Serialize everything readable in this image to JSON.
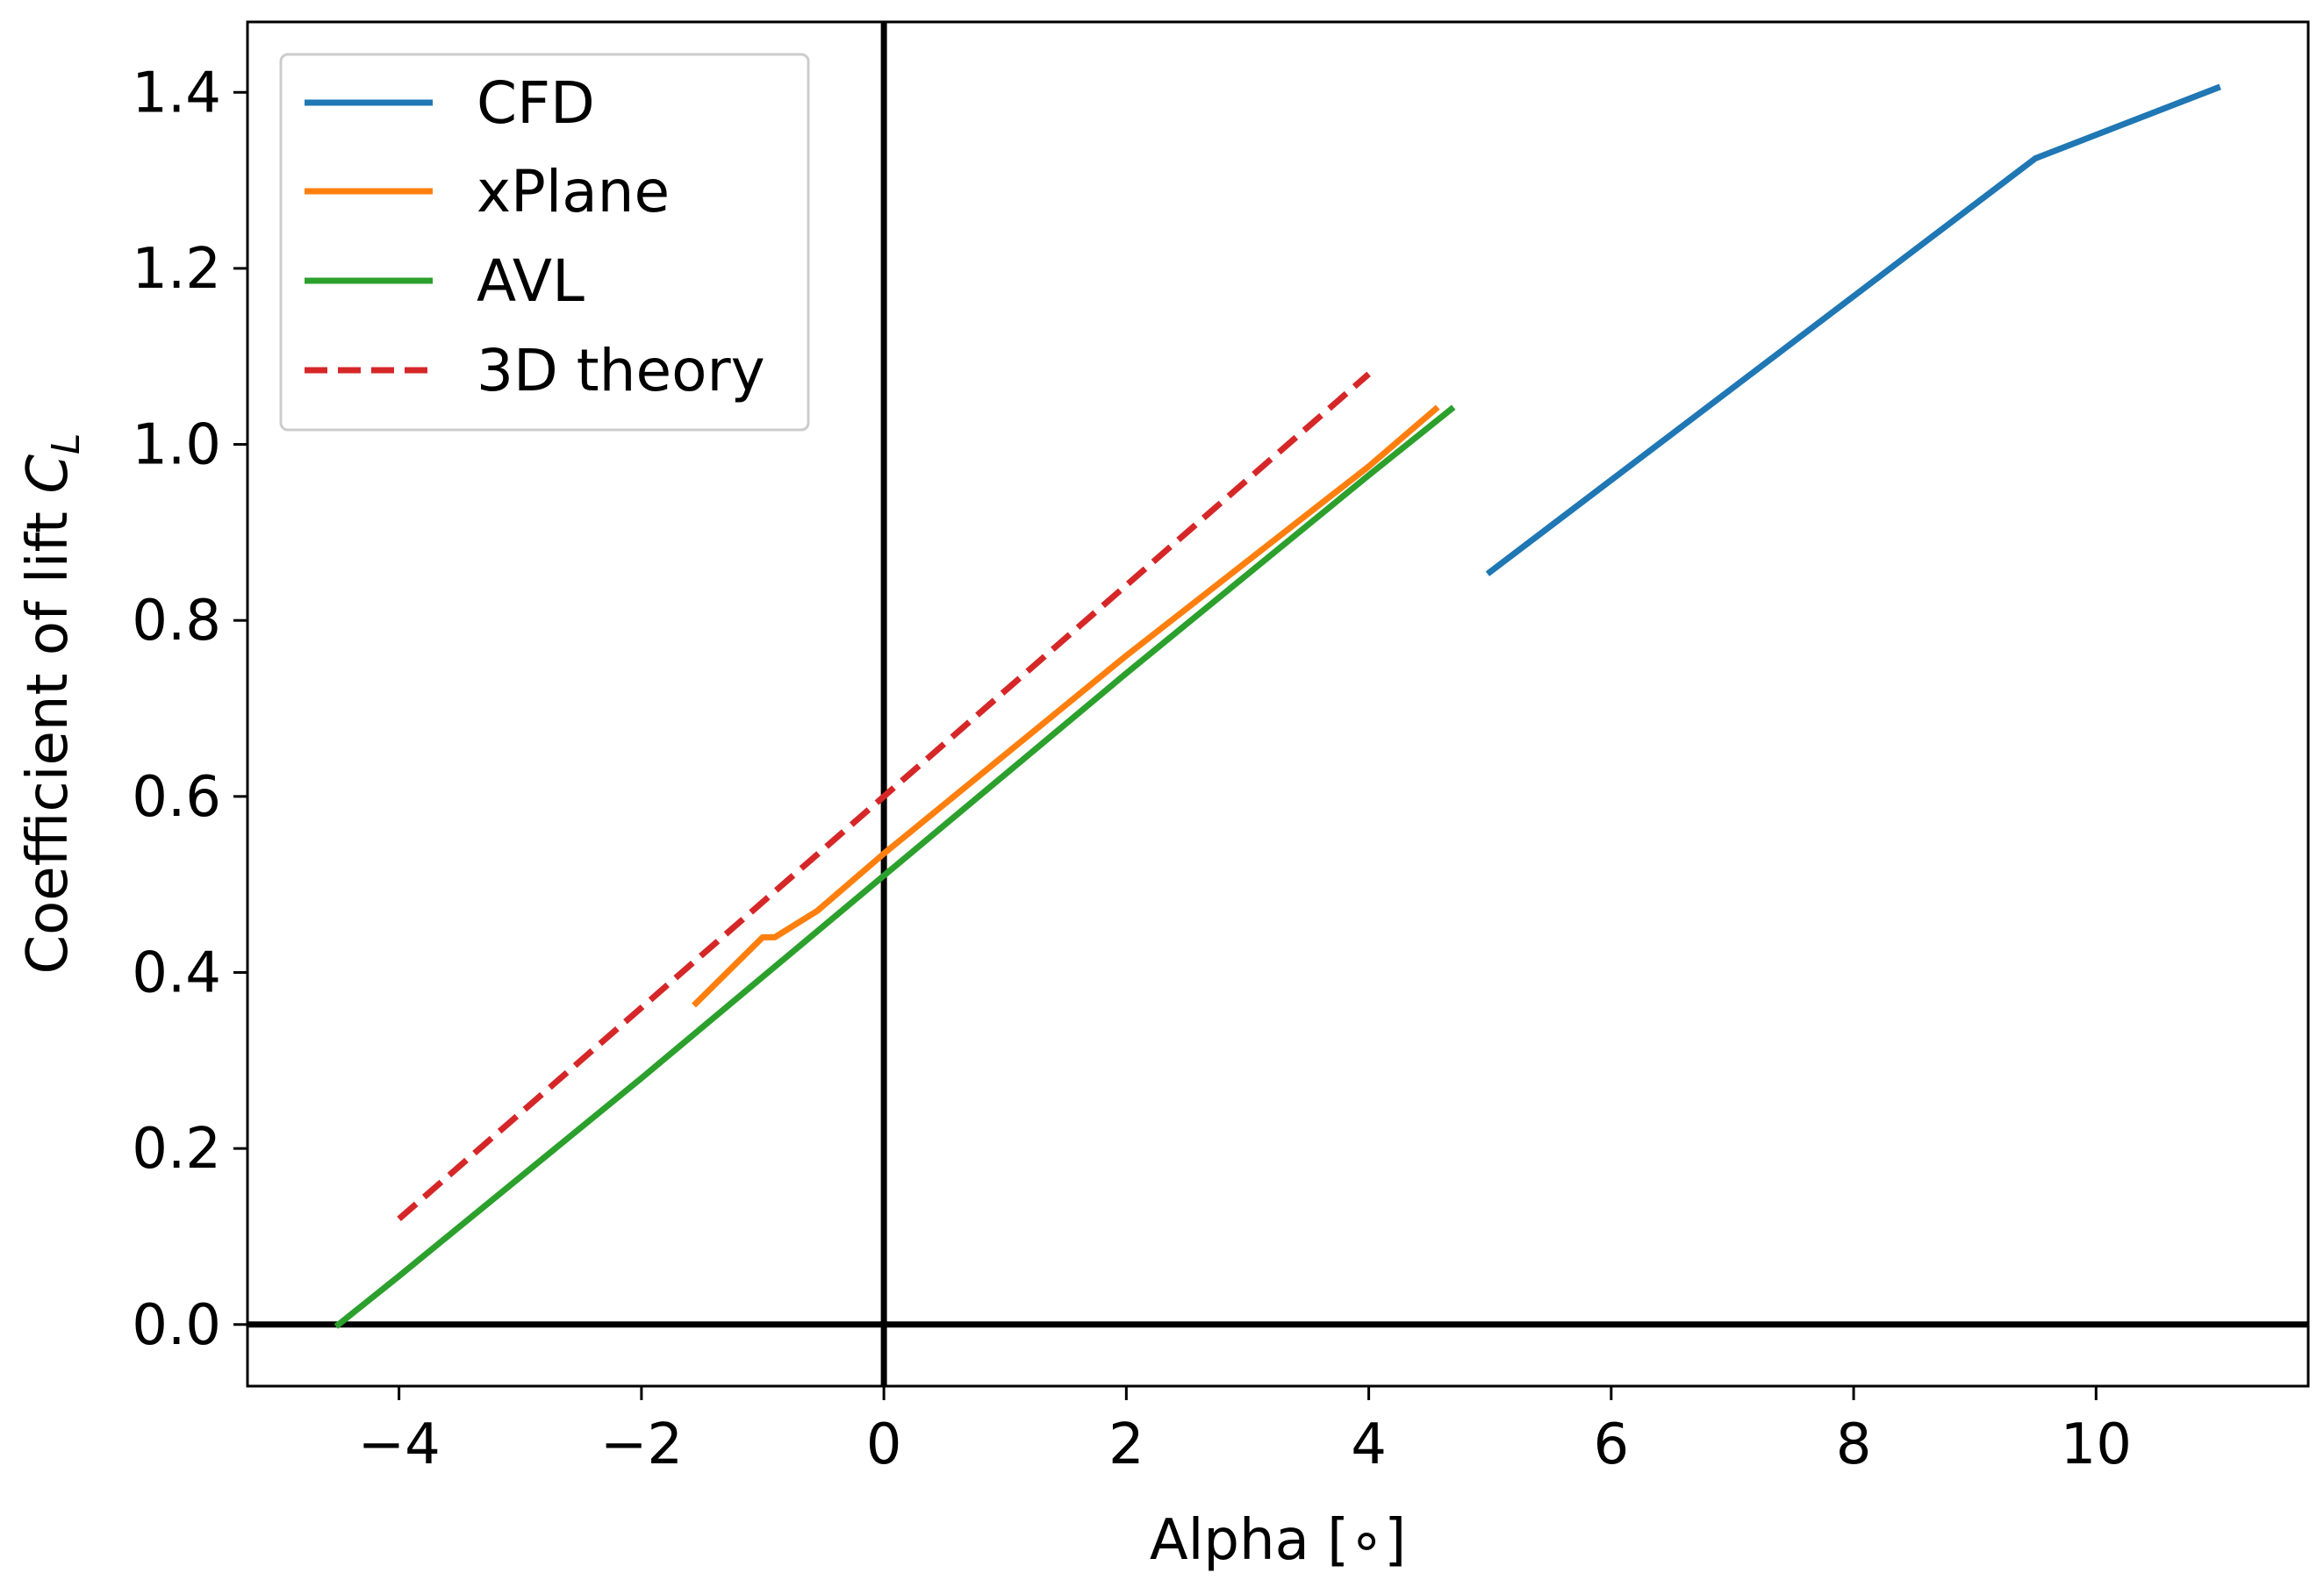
{
  "chart_data": {
    "type": "line",
    "title": "",
    "xlabel": "Alpha [∘]",
    "ylabel": "Coefficient of lift C_L",
    "ylabel_main": "Coefficient of lift ",
    "ylabel_symbol": "C",
    "ylabel_subscript": "L",
    "xlim": [
      -5.25,
      11.75
    ],
    "ylim": [
      -0.07,
      1.48
    ],
    "xticks": [
      -4,
      -2,
      0,
      2,
      4,
      6,
      8,
      10
    ],
    "xtick_labels": [
      "−4",
      "−2",
      "0",
      "2",
      "4",
      "6",
      "8",
      "10"
    ],
    "yticks": [
      0.0,
      0.2,
      0.4,
      0.6,
      0.8,
      1.0,
      1.2,
      1.4
    ],
    "ytick_labels": [
      "0.0",
      "0.2",
      "0.4",
      "0.6",
      "0.8",
      "1.0",
      "1.2",
      "1.4"
    ],
    "grid": false,
    "legend_position": "top-left",
    "reference_lines": {
      "x": 0,
      "y": 0
    },
    "series": [
      {
        "name": "CFD",
        "color": "#1f77b4",
        "style": "solid",
        "x": [
          5.0,
          9.5,
          11.0
        ],
        "y": [
          0.855,
          1.325,
          1.405
        ]
      },
      {
        "name": "xPlane",
        "color": "#ff7f0e",
        "style": "solid",
        "x": [
          -1.55,
          -1.0,
          -0.9,
          -0.55,
          0.0,
          2.0,
          4.0,
          4.55
        ],
        "y": [
          0.365,
          0.44,
          0.44,
          0.47,
          0.535,
          0.76,
          0.975,
          1.04
        ]
      },
      {
        "name": "AVL",
        "color": "#2ca02c",
        "style": "solid",
        "x": [
          -4.5,
          -4.0,
          -2.0,
          0.0,
          2.0,
          4.0,
          4.68
        ],
        "y": [
          0.0,
          0.055,
          0.28,
          0.51,
          0.74,
          0.965,
          1.04
        ]
      },
      {
        "name": "3D theory",
        "color": "#d62728",
        "style": "dashed",
        "x": [
          -4.0,
          4.0
        ],
        "y": [
          0.12,
          1.08
        ]
      }
    ]
  }
}
